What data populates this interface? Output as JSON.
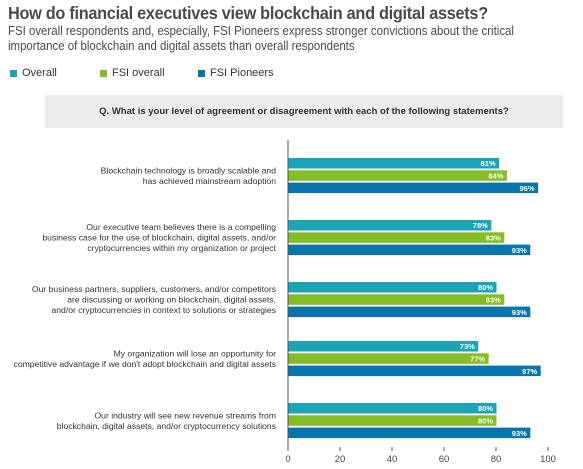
{
  "title": "How do financial executives view blockchain and digital assets?",
  "subtitle": "FSI overall respondents and, especially, FSI Pioneers express stronger convictions about the critical importance of blockchain and digital assets than overall respondents",
  "question": "Q.  What is your level of agreement or disagreement with each of the following statements?",
  "colors": {
    "overall": "#1ba3b6",
    "fsi_overall": "#86bc25",
    "fsi_pioneers": "#0a75ad"
  },
  "chart_data": {
    "type": "bar",
    "orientation": "horizontal",
    "categories": [
      [
        "Blockchain technology is broadly scalable and",
        "has achieved mainstream adoption"
      ],
      [
        "Our executive team believes there is a compelling",
        "business case for the use of blockchain, digital assets, and/or",
        "cryptocurrencies within my organization or project"
      ],
      [
        "Our business partners, suppliers, customers, and/or competitors",
        "are discussing or working on blockchain, digital assets,",
        "and/or cryptocurrencies in context to solutions or strategies"
      ],
      [
        "My organization will lose an opportunity for",
        "competitive advantage if we don't adopt blockchain and digital assets"
      ],
      [
        "Our industry will see new revenue streams from",
        "blockchain, digital assets, and/or cryptocurrency solutions"
      ]
    ],
    "series": [
      {
        "name": "Overall",
        "values": [
          81,
          78,
          80,
          73,
          80
        ]
      },
      {
        "name": "FSI overall",
        "values": [
          84,
          83,
          83,
          77,
          80
        ]
      },
      {
        "name": "FSI Pioneers",
        "values": [
          96,
          93,
          93,
          97,
          93
        ]
      }
    ],
    "xlim": [
      0,
      100
    ],
    "xticks": [
      0,
      20,
      40,
      60,
      80,
      100
    ],
    "value_suffix": "%",
    "legend_position": "top-left",
    "grid": false
  }
}
